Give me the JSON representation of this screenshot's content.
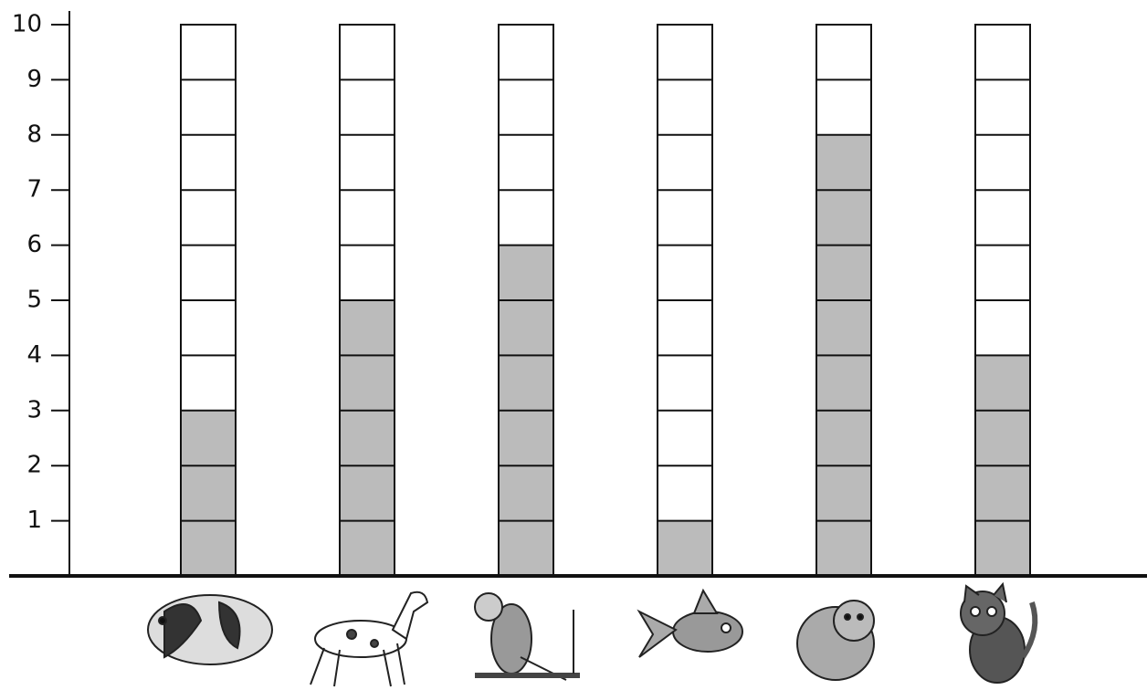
{
  "chart_data": {
    "type": "bar",
    "categories": [
      null,
      null,
      null,
      null,
      null,
      null
    ],
    "values": [
      3,
      5,
      6,
      1,
      8,
      4
    ],
    "color": "#bbbbbb",
    "ylim": [
      0,
      10
    ],
    "yticks": [
      1,
      2,
      3,
      4,
      5,
      6,
      7,
      8,
      9,
      10
    ],
    "grid": true
  }
}
